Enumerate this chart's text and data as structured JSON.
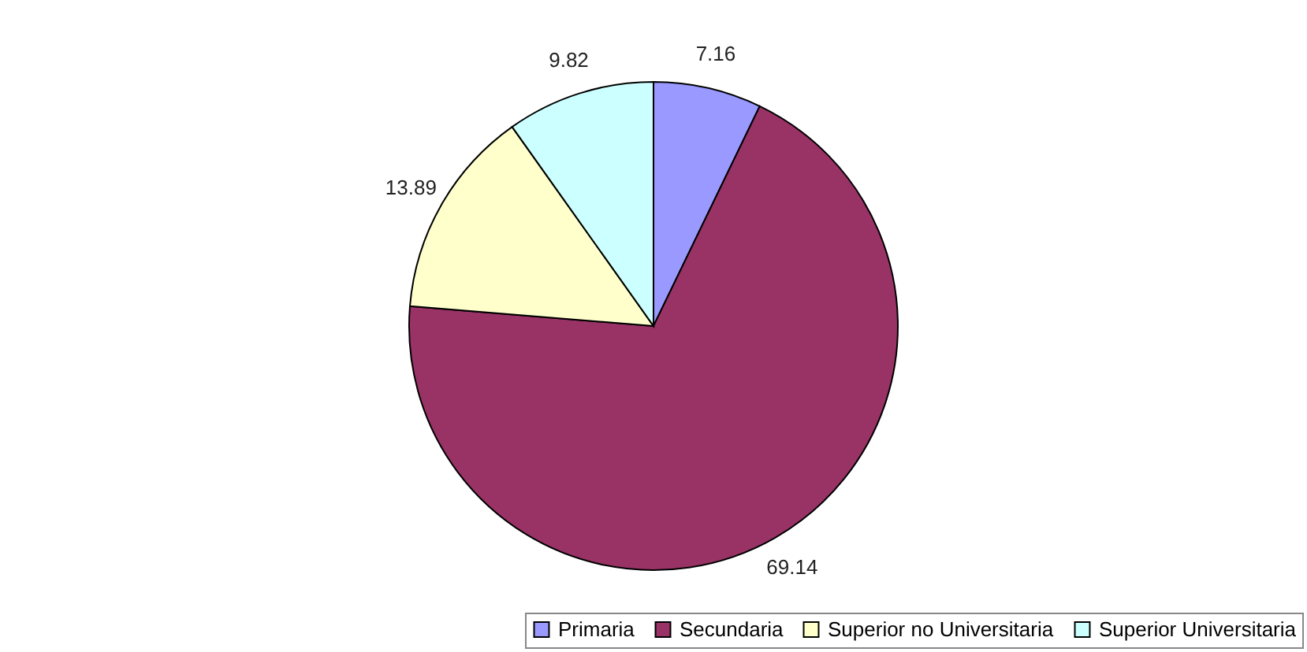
{
  "chart_data": {
    "type": "pie",
    "categories": [
      "Primaria",
      "Secundaria",
      "Superior no Universitaria",
      "Superior Universitaria"
    ],
    "values": [
      7.16,
      69.14,
      13.89,
      9.82
    ],
    "colors": [
      "#9999ff",
      "#993366",
      "#ffffcc",
      "#ccffff"
    ],
    "data_labels": true,
    "legend": "bottom right"
  }
}
